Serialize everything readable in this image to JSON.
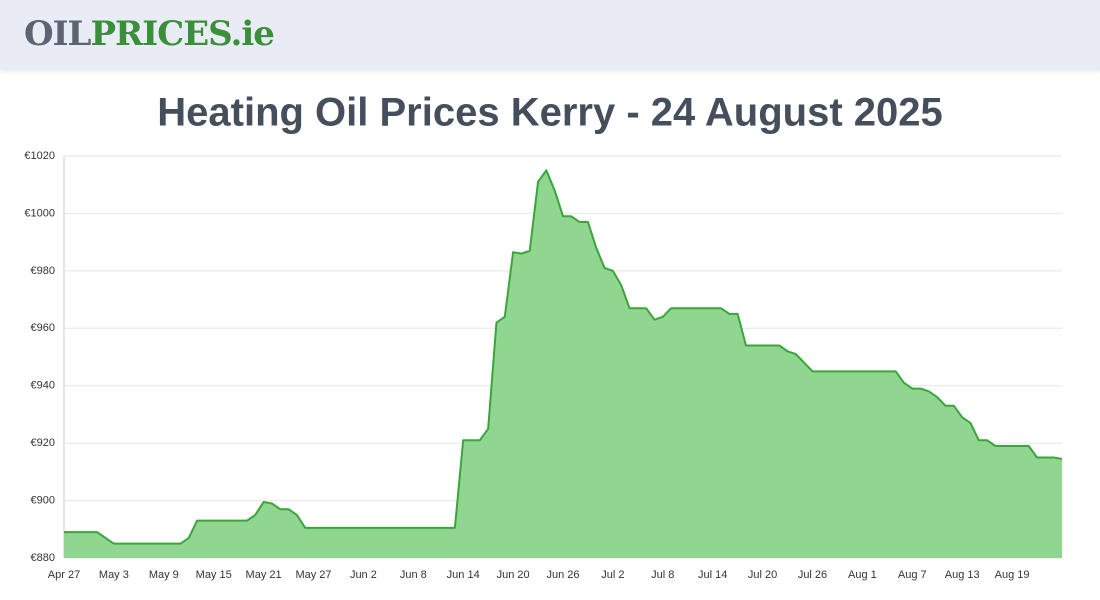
{
  "header": {
    "logo_part1": "OIL",
    "logo_part2": "PRICES",
    "logo_part3": ".ie"
  },
  "chart_data": {
    "type": "area",
    "title": "Heating Oil Prices Kerry - 24 August 2025",
    "color": "#3aa63a",
    "fill": "#90d690",
    "ylim": [
      880,
      1020
    ],
    "grid": true,
    "yticks": [
      {
        "value": 880,
        "label": "€880"
      },
      {
        "value": 900,
        "label": "€900"
      },
      {
        "value": 920,
        "label": "€920"
      },
      {
        "value": 940,
        "label": "€940"
      },
      {
        "value": 960,
        "label": "€960"
      },
      {
        "value": 980,
        "label": "€980"
      },
      {
        "value": 1000,
        "label": "€1000"
      },
      {
        "value": 1020,
        "label": "€1020"
      }
    ],
    "categories": [
      "Apr 27",
      null,
      null,
      null,
      null,
      null,
      "May 3",
      null,
      null,
      null,
      null,
      null,
      "May 9",
      null,
      null,
      null,
      null,
      null,
      "May 15",
      null,
      null,
      null,
      null,
      null,
      "May 21",
      null,
      null,
      null,
      null,
      null,
      "May 27",
      null,
      null,
      null,
      null,
      null,
      "Jun 2",
      null,
      null,
      null,
      null,
      null,
      "Jun 8",
      null,
      null,
      null,
      null,
      null,
      "Jun 14",
      null,
      null,
      null,
      null,
      null,
      "Jun 20",
      null,
      null,
      null,
      null,
      null,
      "Jun 26",
      null,
      null,
      null,
      null,
      null,
      "Jul 2",
      null,
      null,
      null,
      null,
      null,
      "Jul 8",
      null,
      null,
      null,
      null,
      null,
      "Jul 14",
      null,
      null,
      null,
      null,
      null,
      "Jul 20",
      null,
      null,
      null,
      null,
      null,
      "Jul 26",
      null,
      null,
      null,
      null,
      null,
      "Aug 1",
      null,
      null,
      null,
      null,
      null,
      "Aug 7",
      null,
      null,
      null,
      null,
      null,
      "Aug 13",
      null,
      null,
      null,
      null,
      null,
      "Aug 19",
      null,
      null,
      null,
      null,
      null,
      null
    ],
    "values": [
      889,
      889,
      889,
      889,
      889,
      887,
      885,
      885,
      885,
      885,
      885,
      885,
      885,
      885,
      885,
      887,
      893,
      893,
      893,
      893,
      893,
      893,
      893,
      895,
      899.5,
      899,
      897,
      897,
      895,
      890.5,
      890.5,
      890.5,
      890.5,
      890.5,
      890.5,
      890.5,
      890.5,
      890.5,
      890.5,
      890.5,
      890.5,
      890.5,
      890.5,
      890.5,
      890.5,
      890.5,
      890.5,
      890.5,
      921,
      921,
      921,
      925,
      962,
      964,
      986.5,
      986,
      987,
      1011,
      1015,
      1008,
      999,
      999,
      997,
      997,
      988,
      981,
      980,
      975,
      967,
      967,
      967,
      963,
      964,
      967,
      967,
      967,
      967,
      967,
      967,
      967,
      965,
      965,
      954,
      954,
      954,
      954,
      954,
      952,
      951,
      948,
      945,
      945,
      945,
      945,
      945,
      945,
      945,
      945,
      945,
      945,
      945,
      941,
      939,
      939,
      938,
      936,
      933,
      933,
      929,
      927,
      921,
      921,
      919,
      919,
      919,
      919,
      919,
      915,
      915,
      915,
      914.5
    ]
  }
}
